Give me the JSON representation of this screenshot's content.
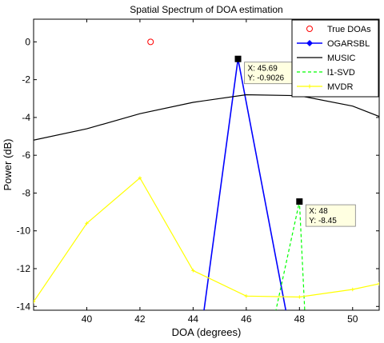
{
  "chart_data": {
    "type": "line",
    "title": "Spatial Spectrum of DOA estimation",
    "xlabel": "DOA (degrees)",
    "ylabel": "Power (dB)",
    "xlim": [
      38,
      51
    ],
    "ylim": [
      -14.2,
      1.2
    ],
    "xticks": [
      40,
      42,
      44,
      46,
      48,
      50
    ],
    "yticks": [
      0,
      -2,
      -4,
      -6,
      -8,
      -10,
      -12,
      -14
    ],
    "grid": false,
    "legend_position": "top-right",
    "series": [
      {
        "name": "True DOAs",
        "style": "marker",
        "color": "#ff0000",
        "x": [
          42.4
        ],
        "y": [
          0
        ]
      },
      {
        "name": "OGARSBL",
        "style": "line-marker",
        "color": "#0000ff",
        "x": [
          44.4,
          45.69,
          47.5
        ],
        "y": [
          -14.3,
          -0.9026,
          -14.3
        ]
      },
      {
        "name": "MUSIC",
        "style": "line",
        "color": "#000000",
        "x": [
          38,
          40,
          42,
          44,
          46,
          48,
          50,
          51
        ],
        "y": [
          -5.2,
          -4.6,
          -3.8,
          -3.2,
          -2.8,
          -2.85,
          -3.4,
          -3.95
        ]
      },
      {
        "name": "l1-SVD",
        "style": "dashed",
        "color": "#00ff00",
        "x": [
          47.1,
          48,
          48.2
        ],
        "y": [
          -14.3,
          -8.45,
          -14.3
        ]
      },
      {
        "name": "MVDR",
        "style": "line",
        "color": "#ffff00",
        "x": [
          38,
          40,
          42,
          44,
          46,
          48,
          50,
          51
        ],
        "y": [
          -13.75,
          -9.6,
          -7.2,
          -12.1,
          -13.45,
          -13.5,
          -13.1,
          -12.8
        ]
      }
    ],
    "datatips": [
      {
        "x_label": "X: 45.69",
        "y_label": "Y: -0.9026",
        "x": 45.69,
        "y": -0.9026
      },
      {
        "x_label": "X: 48",
        "y_label": "Y: -8.45",
        "x": 48,
        "y": -8.45
      }
    ]
  }
}
